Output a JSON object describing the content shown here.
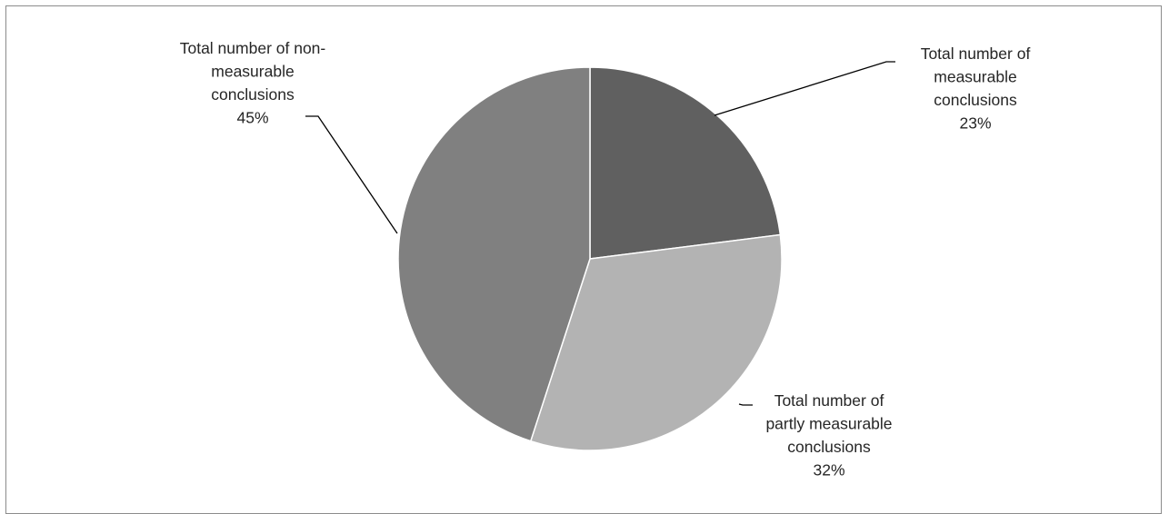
{
  "chart_data": {
    "type": "pie",
    "title": "",
    "start_angle_deg": 0,
    "direction": "clockwise",
    "slices": [
      {
        "label_lines": [
          "Total number of",
          "measurable",
          "conclusions"
        ],
        "percent_label": "23%",
        "value": 23,
        "color": "#606060"
      },
      {
        "label_lines": [
          "Total number of",
          "partly measurable",
          "conclusions"
        ],
        "percent_label": "32%",
        "value": 32,
        "color": "#b3b3b3"
      },
      {
        "label_lines": [
          "Total number of non-",
          "measurable",
          "conclusions"
        ],
        "percent_label": "45%",
        "value": 45,
        "color": "#808080"
      }
    ],
    "legend": "none",
    "slice_border_color": "#ffffff",
    "leader_line_color": "#000000"
  }
}
